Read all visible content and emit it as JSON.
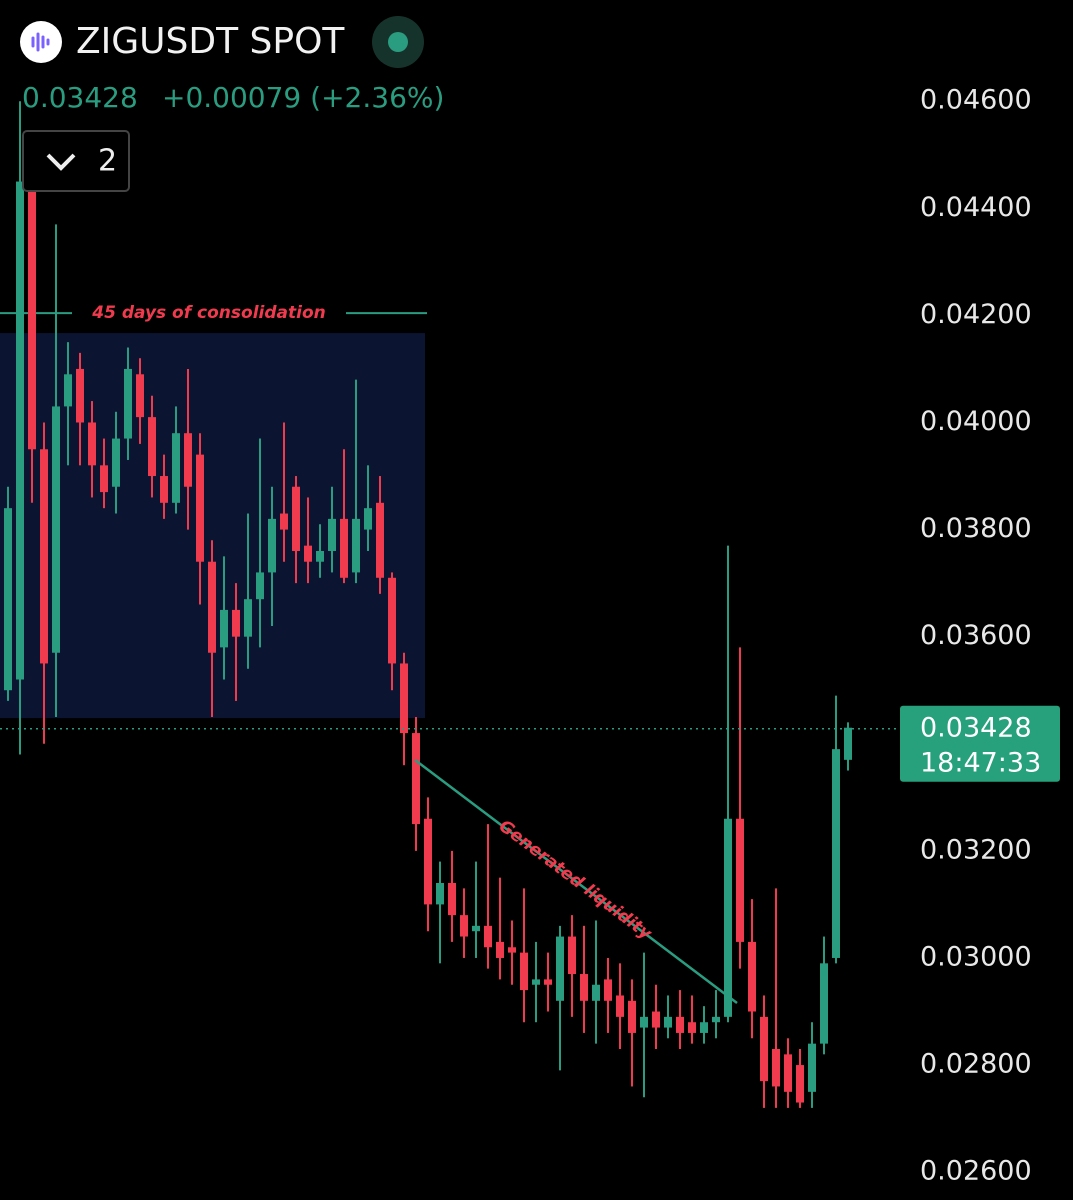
{
  "header": {
    "title": "ZIGUSDT SPOT",
    "price": "0.03428",
    "change": "+0.00079 (+2.36%)",
    "interval_count": "2"
  },
  "chart_data": {
    "type": "candlestick",
    "ylim": [
      0.02548,
      0.04789
    ],
    "yticks": [
      {
        "value": 0.046,
        "label": "0.04600"
      },
      {
        "value": 0.044,
        "label": "0.04400"
      },
      {
        "value": 0.042,
        "label": "0.04200"
      },
      {
        "value": 0.04,
        "label": "0.04000"
      },
      {
        "value": 0.038,
        "label": "0.03800"
      },
      {
        "value": 0.036,
        "label": "0.03600"
      },
      {
        "value": 0.032,
        "label": "0.03200"
      },
      {
        "value": 0.03,
        "label": "0.03000"
      },
      {
        "value": 0.028,
        "label": "0.02800"
      },
      {
        "value": 0.026,
        "label": "0.02600"
      }
    ],
    "up_color": "#2a9d80",
    "down_color": "#f03b4f",
    "open": [
      0.035,
      0.0352,
      0.0445,
      0.0395,
      0.0357,
      0.0403,
      0.041,
      0.04,
      0.0392,
      0.0388,
      0.0397,
      0.0409,
      0.0401,
      0.039,
      0.0385,
      0.0398,
      0.0394,
      0.0374,
      0.0358,
      0.0365,
      0.036,
      0.0367,
      0.0372,
      0.0383,
      0.0388,
      0.0377,
      0.0374,
      0.0376,
      0.0382,
      0.0372,
      0.038,
      0.0385,
      0.0371,
      0.0355,
      0.0342,
      0.0326,
      0.031,
      0.0314,
      0.0308,
      0.0305,
      0.0306,
      0.0303,
      0.0302,
      0.0301,
      0.0295,
      0.0296,
      0.0292,
      0.0304,
      0.0297,
      0.0292,
      0.0296,
      0.0293,
      0.0292,
      0.0287,
      0.029,
      0.0287,
      0.0289,
      0.0288,
      0.0286,
      0.0288,
      0.0289,
      0.0326,
      0.0303,
      0.0289,
      0.0283,
      0.0282,
      0.028,
      0.0275,
      0.0284,
      0.03,
      0.0337
    ],
    "high": [
      0.0388,
      0.046,
      0.045,
      0.04,
      0.0437,
      0.0415,
      0.0413,
      0.0404,
      0.0397,
      0.0402,
      0.0414,
      0.0412,
      0.0405,
      0.0394,
      0.0403,
      0.041,
      0.0398,
      0.0378,
      0.0375,
      0.037,
      0.0383,
      0.0397,
      0.0388,
      0.04,
      0.039,
      0.0386,
      0.0381,
      0.0388,
      0.0395,
      0.0408,
      0.0392,
      0.039,
      0.0372,
      0.0357,
      0.0345,
      0.033,
      0.0318,
      0.032,
      0.0313,
      0.0318,
      0.0325,
      0.0315,
      0.0307,
      0.0313,
      0.0303,
      0.0301,
      0.0306,
      0.0308,
      0.0306,
      0.0307,
      0.03,
      0.0299,
      0.0296,
      0.0301,
      0.0295,
      0.0293,
      0.0294,
      0.0293,
      0.0291,
      0.0294,
      0.0377,
      0.0358,
      0.0311,
      0.0293,
      0.0313,
      0.0285,
      0.0283,
      0.0288,
      0.0304,
      0.0349,
      0.0344
    ],
    "low": [
      0.0348,
      0.0338,
      0.0385,
      0.034,
      0.0345,
      0.0392,
      0.0392,
      0.0386,
      0.0384,
      0.0383,
      0.0393,
      0.0396,
      0.0386,
      0.0382,
      0.0383,
      0.038,
      0.0366,
      0.0345,
      0.0352,
      0.0348,
      0.0354,
      0.0358,
      0.0362,
      0.0374,
      0.037,
      0.037,
      0.0371,
      0.0372,
      0.037,
      0.037,
      0.0376,
      0.0368,
      0.035,
      0.0336,
      0.032,
      0.0305,
      0.0299,
      0.0303,
      0.03,
      0.03,
      0.0298,
      0.0296,
      0.0295,
      0.0288,
      0.0288,
      0.029,
      0.0279,
      0.0289,
      0.0286,
      0.0284,
      0.0286,
      0.0283,
      0.0276,
      0.0274,
      0.0283,
      0.0285,
      0.0283,
      0.0284,
      0.0284,
      0.0285,
      0.0288,
      0.0298,
      0.0285,
      0.0272,
      0.0272,
      0.0272,
      0.0272,
      0.0272,
      0.0282,
      0.0299,
      0.0335
    ],
    "close": [
      0.0384,
      0.0445,
      0.0395,
      0.0355,
      0.0403,
      0.0409,
      0.04,
      0.0392,
      0.0387,
      0.0397,
      0.041,
      0.0401,
      0.039,
      0.0385,
      0.0398,
      0.0388,
      0.0374,
      0.0357,
      0.0365,
      0.036,
      0.0367,
      0.0372,
      0.0382,
      0.038,
      0.0376,
      0.0374,
      0.0376,
      0.0382,
      0.0371,
      0.0382,
      0.0384,
      0.0371,
      0.0355,
      0.0342,
      0.0325,
      0.031,
      0.0314,
      0.0308,
      0.0304,
      0.0306,
      0.0302,
      0.03,
      0.0301,
      0.0294,
      0.0296,
      0.0295,
      0.0304,
      0.0297,
      0.0292,
      0.0295,
      0.0292,
      0.0289,
      0.0286,
      0.0289,
      0.0287,
      0.0289,
      0.0286,
      0.0286,
      0.0288,
      0.0289,
      0.0326,
      0.0303,
      0.029,
      0.0277,
      0.0276,
      0.0275,
      0.0273,
      0.0284,
      0.0299,
      0.0339,
      0.0343
    ],
    "last_price": {
      "value": 0.03428,
      "label": "0.03428"
    },
    "countdown": "18:47:33",
    "consolidation": {
      "label": "45 days of consolidation",
      "high": 0.04167,
      "low": 0.03448
    },
    "liquidity_label": "Generated liquidity"
  }
}
